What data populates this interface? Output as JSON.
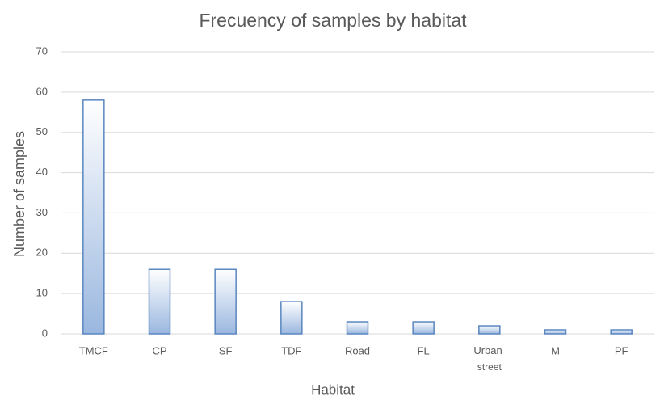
{
  "chart_data": {
    "type": "bar",
    "title": "Frecuency of samples by habitat",
    "x_label": "Habitat",
    "y_label": "Number of samples",
    "categories": [
      "TMCF",
      "CP",
      "SF",
      "TDF",
      "Road",
      "FL",
      "Urban street",
      "M",
      "PF"
    ],
    "values": [
      58,
      16,
      16,
      8,
      3,
      3,
      2,
      1,
      1
    ],
    "color": "#9ab7df",
    "edge_color": "#5a86c0",
    "ylim": [
      0,
      70
    ],
    "yticks": [
      0,
      10,
      20,
      30,
      40,
      50,
      60,
      70
    ],
    "grid": true
  }
}
